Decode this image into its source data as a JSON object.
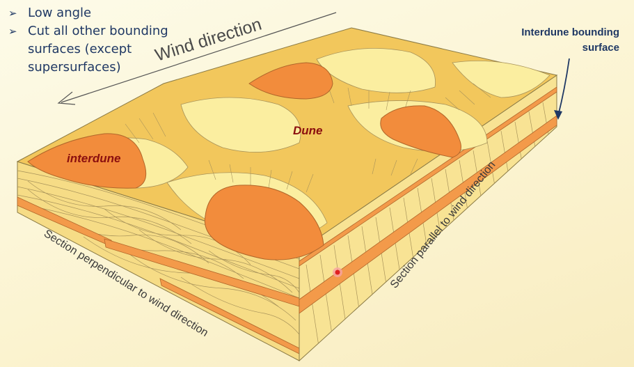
{
  "bullets": [
    {
      "lines": [
        "Low angle"
      ]
    },
    {
      "lines": [
        "Cut all other bounding",
        "surfaces (except",
        "supersurfaces)"
      ]
    }
  ],
  "labels": {
    "wind_direction": "Wind direction",
    "dune": "Dune",
    "interdune": "interdune",
    "perpendicular": "Section perpendicular to wind direction",
    "parallel": "Section parallel to wind direction",
    "bounding_surface_line1": "Interdune bounding",
    "bounding_surface_line2": "surface"
  },
  "colors": {
    "text_blue": "#1f3864",
    "dark_red": "#8b0f0f",
    "sand_light": "#fbeea0",
    "sand_dark": "#f2c75c",
    "interdune_orange": "#f28c3c"
  },
  "icons": [
    "arrow-bullet-icon",
    "wind-arrow-icon",
    "pointer-arrow-icon",
    "laser-pointer-icon"
  ]
}
